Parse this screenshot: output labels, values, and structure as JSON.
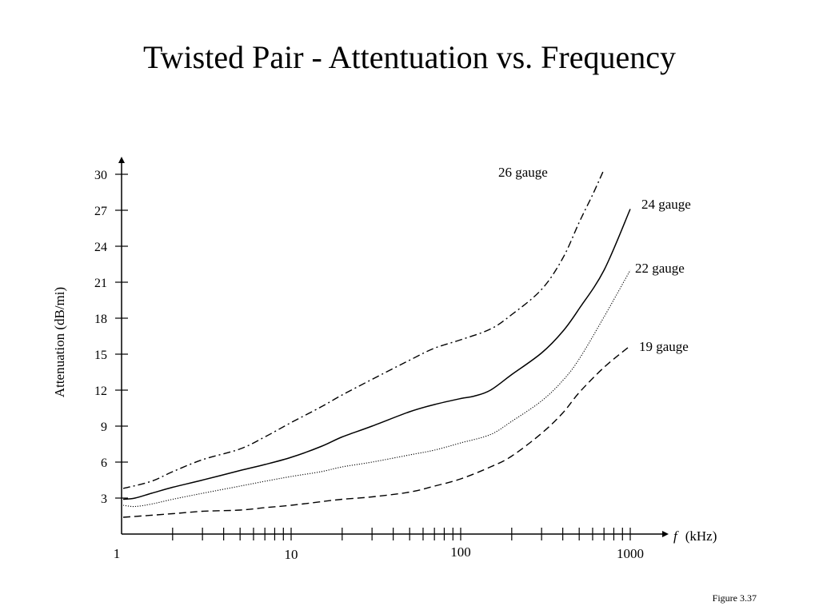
{
  "slide": {
    "title": "Twisted Pair - Attentuation vs. Frequency",
    "figure_label": "Figure 3.37"
  },
  "chart_data": {
    "type": "line",
    "title": "Twisted Pair - Attentuation vs. Frequency",
    "xlabel_symbol": "f",
    "xlabel_unit": "(kHz)",
    "ylabel": "Attenuation (dB/mi)",
    "x_scale": "log",
    "xlim": [
      1,
      1000
    ],
    "ylim": [
      0,
      30
    ],
    "x_tick_labels": [
      "1",
      "10",
      "100",
      "1000"
    ],
    "x_ticks": [
      1,
      10,
      100,
      1000
    ],
    "y_ticks": [
      3,
      6,
      9,
      12,
      15,
      18,
      21,
      24,
      27,
      30
    ],
    "grid": false,
    "legend": "inline labels at curve ends",
    "series": [
      {
        "name": "26 gauge",
        "line_style": "dash-dot",
        "x": [
          1,
          1.5,
          2,
          3,
          5,
          7,
          10,
          15,
          20,
          30,
          50,
          70,
          100,
          150,
          200,
          300,
          400,
          500,
          600,
          700
        ],
        "y": [
          3.8,
          4.4,
          5.2,
          6.2,
          7.1,
          8.1,
          9.3,
          10.6,
          11.6,
          12.9,
          14.5,
          15.5,
          16.2,
          17.1,
          18.3,
          20.4,
          23.0,
          26.0,
          28.3,
          30.4
        ]
      },
      {
        "name": "24 gauge",
        "line_style": "solid",
        "x": [
          1,
          1.2,
          1.5,
          2,
          3,
          5,
          7,
          10,
          15,
          20,
          30,
          50,
          70,
          100,
          120,
          150,
          200,
          300,
          400,
          500,
          700,
          1000
        ],
        "y": [
          2.9,
          3.0,
          3.4,
          3.9,
          4.5,
          5.3,
          5.8,
          6.4,
          7.3,
          8.1,
          9.0,
          10.2,
          10.8,
          11.3,
          11.5,
          12.0,
          13.3,
          15.1,
          16.9,
          18.8,
          22.0,
          27.1
        ]
      },
      {
        "name": "22 gauge",
        "line_style": "dotted",
        "x": [
          1,
          1.2,
          1.5,
          2,
          3,
          5,
          7,
          10,
          15,
          20,
          30,
          50,
          70,
          100,
          150,
          200,
          300,
          400,
          500,
          700,
          1000
        ],
        "y": [
          2.4,
          2.3,
          2.5,
          2.9,
          3.4,
          4.0,
          4.4,
          4.8,
          5.2,
          5.6,
          6.0,
          6.6,
          7.0,
          7.6,
          8.3,
          9.4,
          11.1,
          12.8,
          14.6,
          18.1,
          22.0
        ]
      },
      {
        "name": "19 gauge",
        "line_style": "dashed",
        "x": [
          1,
          2,
          3,
          5,
          7,
          10,
          15,
          20,
          30,
          50,
          70,
          100,
          150,
          200,
          300,
          400,
          500,
          700,
          1000
        ],
        "y": [
          1.4,
          1.7,
          1.9,
          2.0,
          2.2,
          2.4,
          2.7,
          2.9,
          3.1,
          3.5,
          4.0,
          4.6,
          5.6,
          6.5,
          8.4,
          10.1,
          11.8,
          13.9,
          15.7
        ]
      }
    ]
  }
}
